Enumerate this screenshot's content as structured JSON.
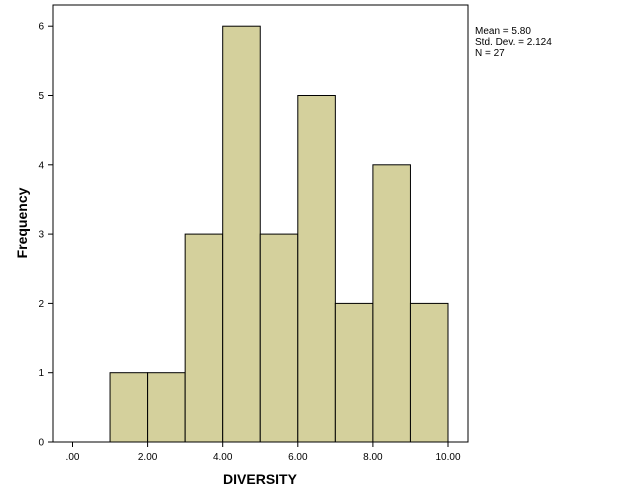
{
  "chart_data": {
    "type": "bar",
    "subtype": "histogram",
    "xlabel": "DIVERSITY",
    "ylabel": "Frequency",
    "bin_edges": [
      0,
      1,
      2,
      3,
      4,
      5,
      6,
      7,
      8,
      9,
      10
    ],
    "values": [
      0,
      1,
      1,
      3,
      6,
      3,
      5,
      2,
      4,
      2
    ],
    "xlim": [
      -0.5,
      10.5
    ],
    "ylim": [
      0,
      6.2
    ],
    "x_ticks": [
      0,
      2,
      4,
      6,
      8,
      10
    ],
    "x_tick_labels": [
      ".00",
      "2.00",
      "4.00",
      "6.00",
      "8.00",
      "10.00"
    ],
    "y_ticks": [
      0,
      1,
      2,
      3,
      4,
      5,
      6
    ],
    "y_tick_labels": [
      "0",
      "1",
      "2",
      "3",
      "4",
      "5",
      "6"
    ],
    "bar_color": "#d4d09c",
    "bar_edge_color": "#000000",
    "grid": false,
    "stats_box": {
      "mean": "Mean = 5.80",
      "std_dev": "Std. Dev. = 2.124",
      "n": "N = 27"
    }
  }
}
